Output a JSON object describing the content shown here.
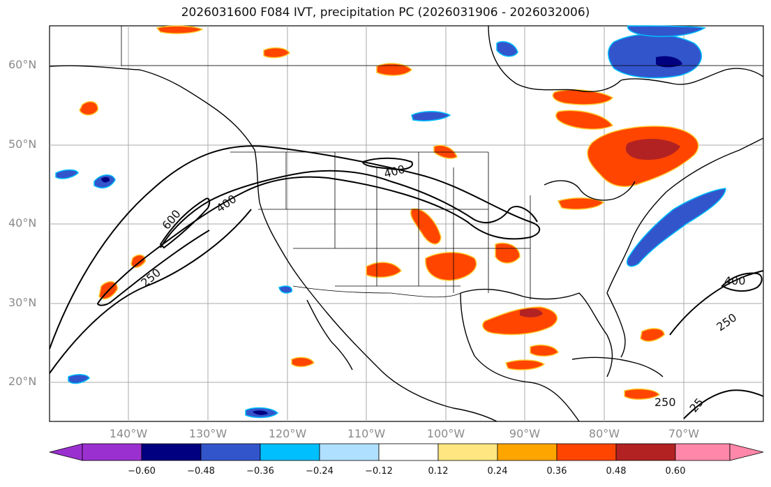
{
  "title": "2026031600 F084 IVT, precipitation PC (2026031906 - 2026032006)",
  "lat_labels": [
    "60°N",
    "50°N",
    "40°N",
    "30°N",
    "20°N"
  ],
  "lon_labels": [
    "140°W",
    "130°W",
    "120°W",
    "110°W",
    "100°W",
    "90°W",
    "80°W",
    "70°W"
  ],
  "contour_labels": [
    "600",
    "400",
    "250",
    "400",
    "400",
    "250",
    "250",
    "25"
  ],
  "colorbar": {
    "ticks": [
      "−0.60",
      "−0.48",
      "−0.36",
      "−0.24",
      "−0.12",
      "0.12",
      "0.24",
      "0.36",
      "0.48",
      "0.60"
    ],
    "colors": [
      "#9b30d0",
      "#000080",
      "#3355cc",
      "#00bfff",
      "#b0e0ff",
      "#ffffff",
      "#ffe680",
      "#ffa500",
      "#ff4500",
      "#b22222",
      "#ff88aa"
    ]
  }
}
